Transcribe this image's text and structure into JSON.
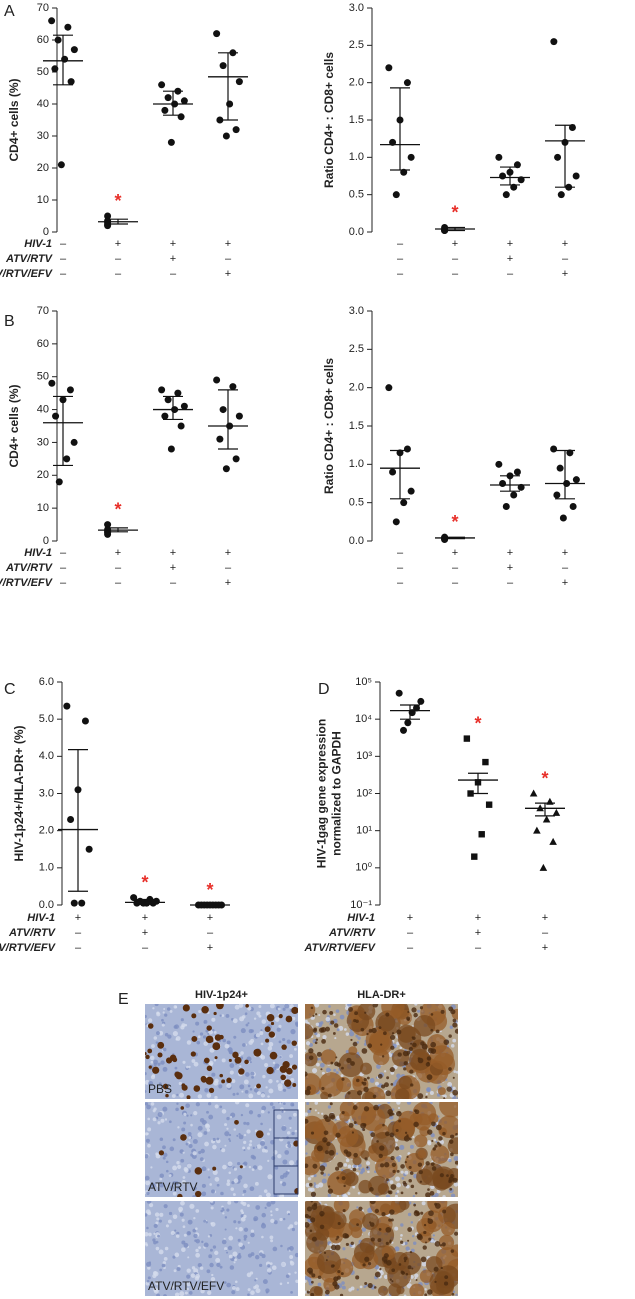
{
  "chart_data": [
    {
      "type": "strip",
      "panel": "A",
      "ylabel": [
        "CD4+ cells (%)"
      ],
      "ylim": [
        0,
        70
      ],
      "yticks": [
        0,
        10,
        20,
        30,
        40,
        50,
        60,
        70
      ],
      "groups": [
        {
          "points": [
            66,
            64,
            60,
            57,
            54,
            51,
            47,
            21
          ],
          "mean": 53.5,
          "upper": 61.5,
          "lower": 46
        },
        {
          "points": [
            5,
            3.5,
            3,
            2.5,
            2
          ],
          "mean": 3.2,
          "upper": 4,
          "lower": 2.5,
          "significance": "*"
        },
        {
          "points": [
            46,
            44,
            42,
            41,
            40,
            38,
            36,
            28
          ],
          "mean": 40,
          "upper": 44,
          "lower": 36.5
        },
        {
          "points": [
            62,
            56,
            52,
            47,
            40,
            35,
            32,
            30
          ],
          "mean": 48.5,
          "upper": 56,
          "lower": 35
        }
      ],
      "treatments": [
        {
          "label": "HIV-1",
          "signs": [
            "–",
            "+",
            "+",
            "+"
          ]
        },
        {
          "label": "ATV/RTV",
          "signs": [
            "–",
            "–",
            "+",
            "–"
          ]
        },
        {
          "label": "ATV/RTV/EFV",
          "signs": [
            "–",
            "–",
            "–",
            "+"
          ]
        }
      ]
    },
    {
      "type": "strip",
      "ylabel": [
        "Ratio CD4+ : CD8+ cells"
      ],
      "ylim": [
        0,
        3
      ],
      "yticks": [
        {
          "value": 0,
          "label": "0.0"
        },
        0.5,
        {
          "value": 1,
          "label": "1.0"
        },
        1.5,
        {
          "value": 2,
          "label": "2.0"
        },
        2.5,
        {
          "value": 3,
          "label": "3.0"
        }
      ],
      "groups": [
        {
          "points": [
            2.2,
            2.0,
            1.5,
            1.2,
            1.0,
            0.8,
            0.5
          ],
          "mean": 1.17,
          "upper": 1.93,
          "lower": 0.83
        },
        {
          "points": [
            0.06,
            0.04,
            0.03,
            0.02,
            0.02
          ],
          "mean": 0.04,
          "upper": 0.06,
          "lower": 0.02,
          "significance": "*"
        },
        {
          "points": [
            1.0,
            0.9,
            0.8,
            0.75,
            0.7,
            0.6,
            0.5
          ],
          "mean": 0.73,
          "upper": 0.87,
          "lower": 0.63
        },
        {
          "points": [
            2.55,
            1.4,
            1.2,
            1.0,
            0.75,
            0.6,
            0.5
          ],
          "mean": 1.22,
          "upper": 1.43,
          "lower": 0.6
        }
      ],
      "treatments": [
        {
          "signs": [
            "–",
            "+",
            "+",
            "+"
          ]
        },
        {
          "signs": [
            "–",
            "–",
            "+",
            "–"
          ]
        },
        {
          "signs": [
            "–",
            "–",
            "–",
            "+"
          ]
        }
      ]
    },
    {
      "type": "strip",
      "panel": "B",
      "ylabel": [
        "CD4+ cells (%)"
      ],
      "ylim": [
        0,
        70
      ],
      "yticks": [
        0,
        10,
        20,
        30,
        40,
        50,
        60,
        70
      ],
      "groups": [
        {
          "points": [
            48,
            46,
            43,
            38,
            30,
            25,
            18
          ],
          "mean": 36,
          "upper": 44,
          "lower": 23
        },
        {
          "points": [
            5,
            3.5,
            3,
            2.5,
            2
          ],
          "mean": 3.3,
          "upper": 4,
          "lower": 2.8,
          "significance": "*"
        },
        {
          "points": [
            46,
            45,
            43,
            41,
            40,
            38,
            35,
            28
          ],
          "mean": 40,
          "upper": 44,
          "lower": 37
        },
        {
          "points": [
            49,
            47,
            40,
            38,
            35,
            31,
            25,
            22
          ],
          "mean": 35,
          "upper": 46,
          "lower": 28
        }
      ],
      "treatments": [
        {
          "label": "HIV-1",
          "signs": [
            "–",
            "+",
            "+",
            "+"
          ]
        },
        {
          "label": "ATV/RTV",
          "signs": [
            "–",
            "–",
            "+",
            "–"
          ]
        },
        {
          "label": "ATV/RTV/EFV",
          "signs": [
            "–",
            "–",
            "–",
            "+"
          ]
        }
      ]
    },
    {
      "type": "strip",
      "ylabel": [
        "Ratio CD4+ : CD8+ cells"
      ],
      "ylim": [
        0,
        3
      ],
      "yticks": [
        {
          "value": 0,
          "label": "0.0"
        },
        0.5,
        {
          "value": 1,
          "label": "1.0"
        },
        1.5,
        {
          "value": 2,
          "label": "2.0"
        },
        2.5,
        {
          "value": 3,
          "label": "3.0"
        }
      ],
      "groups": [
        {
          "points": [
            2.0,
            1.2,
            1.15,
            0.9,
            0.65,
            0.5,
            0.25
          ],
          "mean": 0.95,
          "upper": 1.18,
          "lower": 0.55
        },
        {
          "points": [
            0.05,
            0.04,
            0.03,
            0.03,
            0.02
          ],
          "mean": 0.04,
          "upper": 0.05,
          "lower": 0.03,
          "significance": "*"
        },
        {
          "points": [
            1.0,
            0.9,
            0.85,
            0.75,
            0.7,
            0.6,
            0.45
          ],
          "mean": 0.73,
          "upper": 0.85,
          "lower": 0.65
        },
        {
          "points": [
            1.2,
            1.15,
            0.95,
            0.8,
            0.75,
            0.6,
            0.45,
            0.3
          ],
          "mean": 0.75,
          "upper": 1.18,
          "lower": 0.55
        }
      ],
      "treatments": [
        {
          "signs": [
            "–",
            "+",
            "+",
            "+"
          ]
        },
        {
          "signs": [
            "–",
            "–",
            "+",
            "–"
          ]
        },
        {
          "signs": [
            "–",
            "–",
            "–",
            "+"
          ]
        }
      ]
    },
    {
      "type": "strip",
      "panel": "C",
      "ylabel": [
        "HIV-1p24+/HLA-DR+ (%)"
      ],
      "ylim": [
        0,
        6
      ],
      "yticks": [
        {
          "value": 0,
          "label": "0.0"
        },
        {
          "value": 1,
          "label": "1.0"
        },
        {
          "value": 2,
          "label": "2.0"
        },
        {
          "value": 3,
          "label": "3.0"
        },
        {
          "value": 4,
          "label": "4.0"
        },
        {
          "value": 5,
          "label": "5.0"
        },
        {
          "value": 6,
          "label": "6.0"
        }
      ],
      "groups": [
        {
          "points": [
            5.35,
            4.95,
            3.1,
            2.3,
            1.5,
            0.05,
            0.05
          ],
          "mean": 2.03,
          "upper": 4.18,
          "lower": 0.37
        },
        {
          "points": [
            0.2,
            0.15,
            0.1,
            0.1,
            0.05,
            0.05,
            0.05,
            0.05
          ],
          "mean": 0.07,
          "upper": 0.15,
          "lower": 0.02,
          "significance": "*"
        },
        {
          "points": [
            0,
            0,
            0,
            0,
            0,
            0,
            0,
            0,
            0
          ],
          "mean": 0,
          "upper": 0,
          "lower": 0,
          "significance": "*"
        }
      ],
      "treatments": [
        {
          "label": "HIV-1",
          "signs": [
            "+",
            "+",
            "+"
          ]
        },
        {
          "label": "ATV/RTV",
          "signs": [
            "–",
            "+",
            "–"
          ]
        },
        {
          "label": "ATV/RTV/EFV",
          "signs": [
            "–",
            "–",
            "+"
          ]
        }
      ]
    },
    {
      "type": "strip",
      "panel": "D",
      "log": true,
      "ylabel": [
        "HIV-1gag gene expression",
        "normalized to GAPDH"
      ],
      "ylim": [
        0.1,
        100000
      ],
      "yticks": [
        {
          "value": 0.1,
          "label": "10⁻¹"
        },
        {
          "value": 1,
          "label": "10⁰"
        },
        {
          "value": 10,
          "label": "10¹"
        },
        {
          "value": 100,
          "label": "10²"
        },
        {
          "value": 1000,
          "label": "10³"
        },
        {
          "value": 10000,
          "label": "10⁴"
        },
        {
          "value": 100000,
          "label": "10⁵"
        }
      ],
      "groups": [
        {
          "marker": "circle",
          "points": [
            50000,
            30000,
            20000,
            15000,
            8000,
            5000
          ],
          "mean": 17000,
          "upper": 24000,
          "lower": 10000
        },
        {
          "marker": "square",
          "points": [
            3000,
            700,
            200,
            100,
            50,
            8,
            2
          ],
          "mean": 230,
          "upper": 350,
          "lower": 100,
          "significance": "*"
        },
        {
          "marker": "triangle",
          "points": [
            100,
            60,
            40,
            30,
            20,
            10,
            5,
            1
          ],
          "mean": 40,
          "upper": 55,
          "lower": 25,
          "significance": "*"
        }
      ],
      "treatments": [
        {
          "label": "HIV-1",
          "signs": [
            "+",
            "+",
            "+"
          ]
        },
        {
          "label": "ATV/RTV",
          "signs": [
            "–",
            "+",
            "–"
          ]
        },
        {
          "label": "ATV/RTV/EFV",
          "signs": [
            "–",
            "–",
            "+"
          ]
        }
      ]
    }
  ],
  "micrographs": {
    "panel": "E",
    "columns": [
      "HIV-1p24+",
      "HLA-DR+"
    ],
    "rows": [
      "PBS",
      "ATV/RTV",
      "ATV/RTV/EFV"
    ]
  }
}
